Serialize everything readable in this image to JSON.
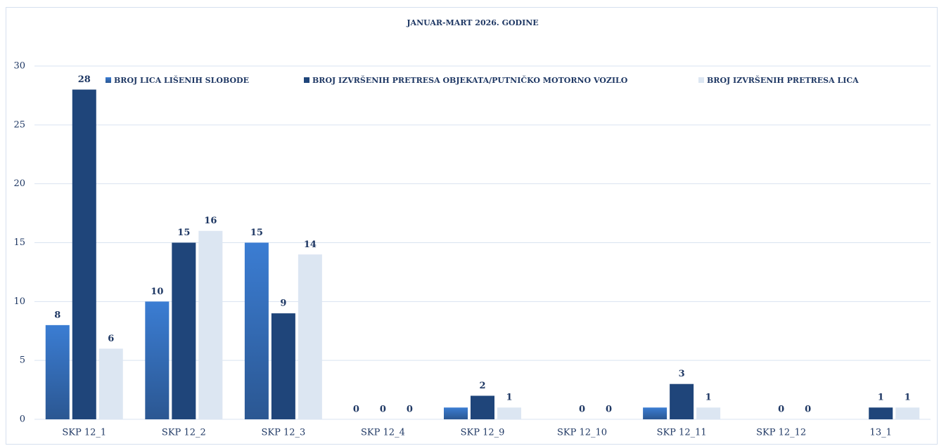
{
  "chart_data": {
    "type": "bar",
    "title": "JANUAR-MART  2026. GODINE",
    "categories": [
      "SKP  12_1",
      "SKP  12_2",
      "SKP  12_3",
      "SKP  12_4",
      "SKP  12_9",
      "SKP  12_10",
      "SKP  12_11",
      "SKP  12_12",
      "13_1"
    ],
    "series": [
      {
        "name": "BROJ LICA LIŠENIH SLOBODE",
        "color": "#3b7dd3",
        "values": [
          8,
          10,
          15,
          0,
          1,
          null,
          1,
          null,
          null
        ],
        "value_labels": [
          "8",
          "10",
          "15",
          "0",
          null,
          null,
          null,
          null,
          null
        ]
      },
      {
        "name": "BROJ IZVRŠENIH PRETRESA OBJEKATA/PUTNIČKO MOTORNO VOZILO",
        "color": "#1f457a",
        "values": [
          28,
          15,
          9,
          0,
          2,
          0,
          3,
          0,
          1
        ],
        "value_labels": [
          "28",
          "15",
          "9",
          "0",
          "2",
          "0",
          "3",
          "0",
          "1"
        ]
      },
      {
        "name": "BROJ IZVRŠENIH PRETRESA LICA",
        "color": "#dce6f2",
        "values": [
          6,
          16,
          14,
          0,
          1,
          0,
          1,
          0,
          1
        ],
        "value_labels": [
          "6",
          "16",
          "14",
          "0",
          "1",
          "0",
          "1",
          "0",
          "1"
        ]
      }
    ],
    "ylim": [
      0,
      30
    ],
    "yticks": [
      0,
      5,
      10,
      15,
      20,
      25,
      30
    ],
    "grid": true,
    "legend": "top"
  }
}
